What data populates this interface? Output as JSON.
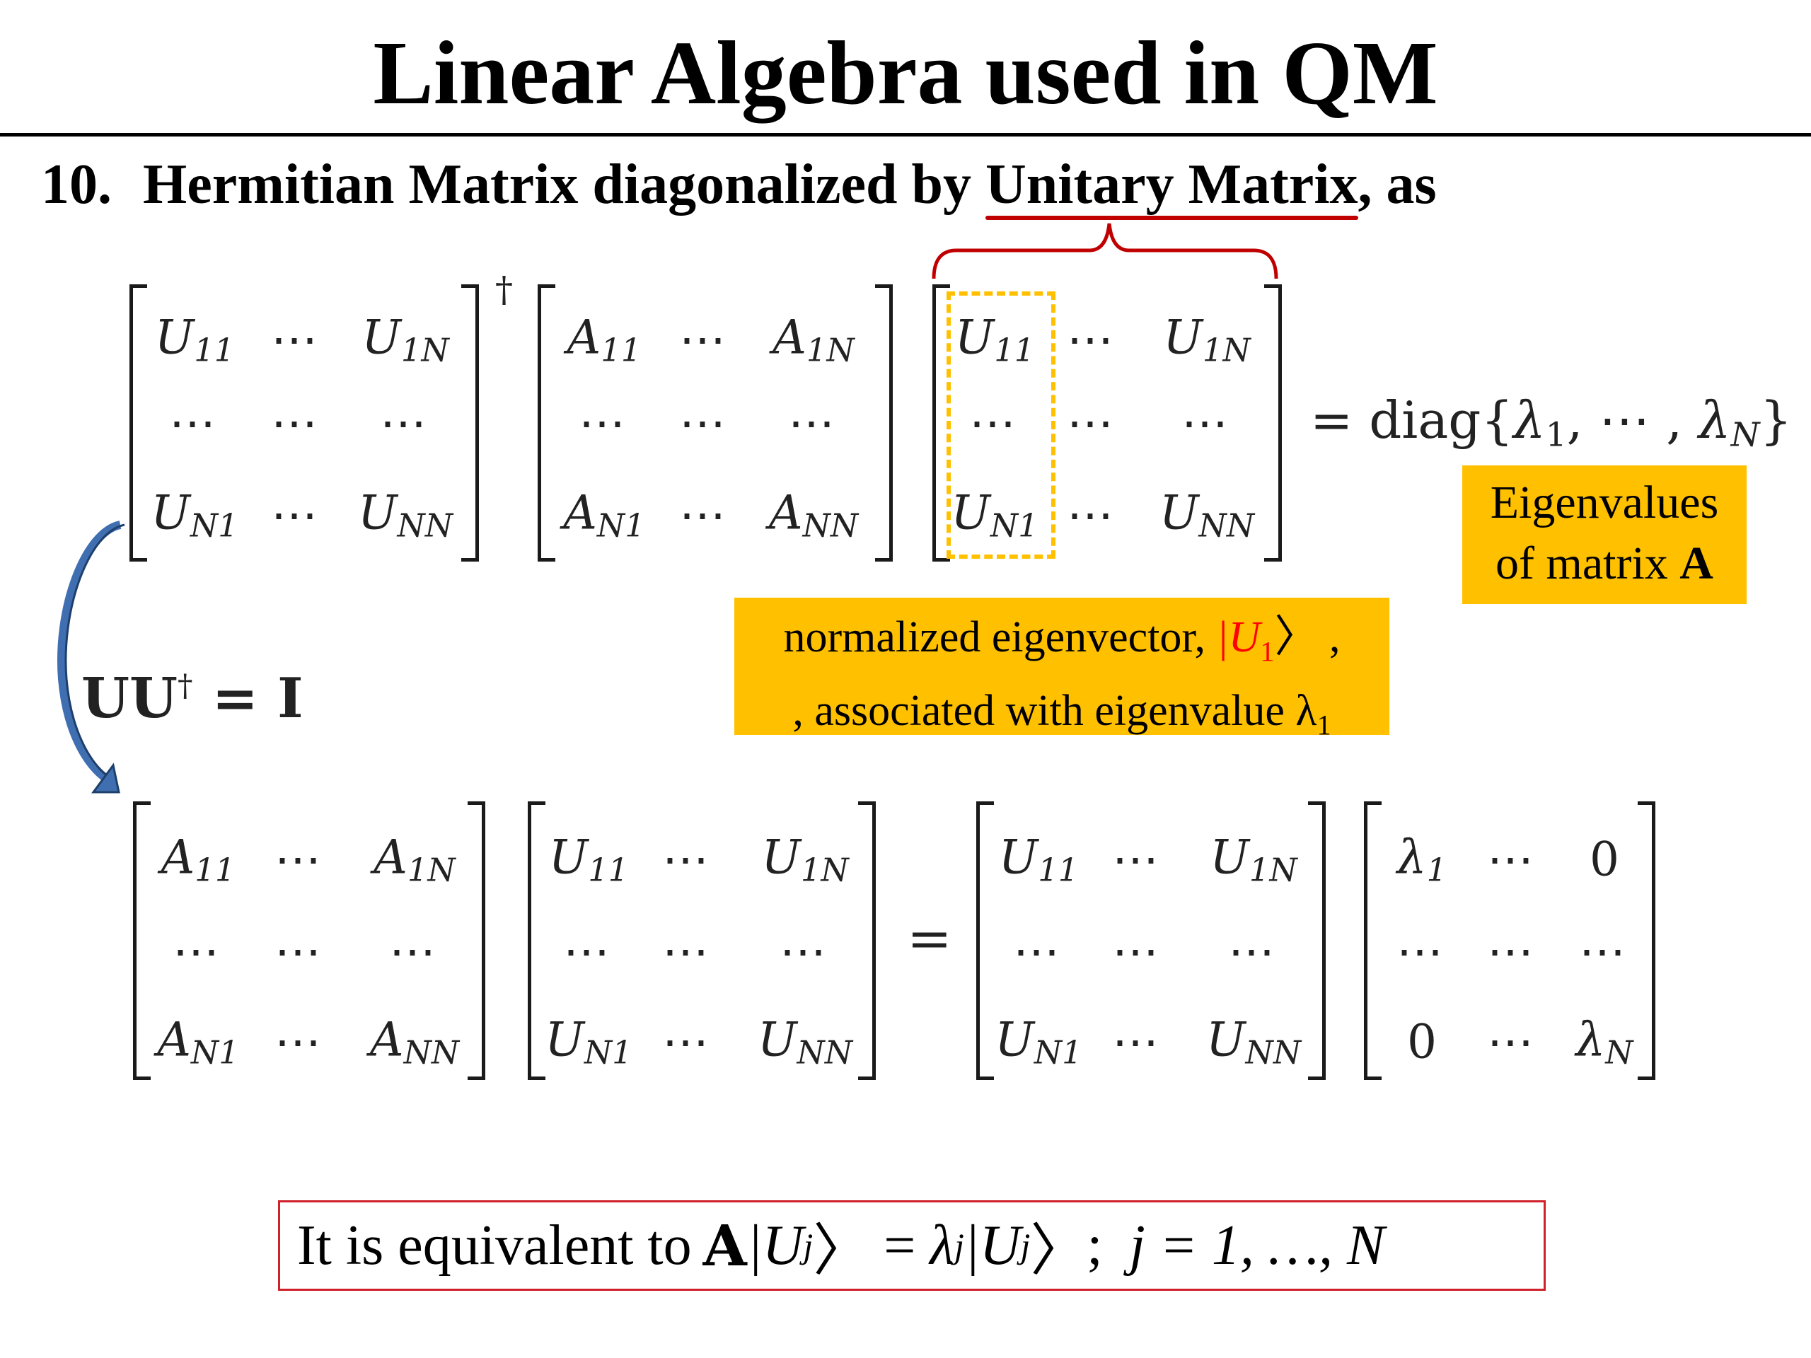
{
  "title": "Linear Algebra used in QM",
  "heading": {
    "number": "10.",
    "text_pre": "Hermitian Matrix diagonalized by ",
    "text_underlined": "Unitary Matrix",
    "text_post": ", as"
  },
  "equation1": {
    "matrix_U_dagger": [
      [
        "U11",
        "⋯",
        "U1N"
      ],
      [
        "⋯",
        "⋯",
        "⋯"
      ],
      [
        "UN1",
        "⋯",
        "UNN"
      ]
    ],
    "dagger": "†",
    "matrix_A": [
      [
        "A11",
        "⋯",
        "A1N"
      ],
      [
        "⋯",
        "⋯",
        "⋯"
      ],
      [
        "AN1",
        "⋯",
        "ANN"
      ]
    ],
    "matrix_U": [
      [
        "U11",
        "⋯",
        "U1N"
      ],
      [
        "⋯",
        "⋯",
        "⋯"
      ],
      [
        "UN1",
        "⋯",
        "UNN"
      ]
    ],
    "rhs_prefix": "= diag{",
    "rhs_l1": "λ",
    "rhs_l1_sub": "1",
    "rhs_mid": ", ⋯ , ",
    "rhs_lN": "λ",
    "rhs_lN_sub": "N",
    "rhs_suffix": "}"
  },
  "eigenvalues_box": {
    "line1": "Eigenvalues",
    "line2_pre": "of matrix ",
    "line2_bold": "A"
  },
  "eigenvector_box": {
    "line1_pre": "normalized eigenvector, ",
    "ket": "|U",
    "ket_sub": "1",
    "ket_close": "〉",
    "line1_post": " ,",
    "line2_pre": ", associated with eigenvalue λ",
    "line2_sub": "1"
  },
  "identity": {
    "text": "UU",
    "sup": "†",
    "rest": " = I"
  },
  "equation2": {
    "matrix_A": [
      [
        "A11",
        "⋯",
        "A1N"
      ],
      [
        "⋯",
        "⋯",
        "⋯"
      ],
      [
        "AN1",
        "⋯",
        "ANN"
      ]
    ],
    "matrix_U_left": [
      [
        "U11",
        "⋯",
        "U1N"
      ],
      [
        "⋯",
        "⋯",
        "⋯"
      ],
      [
        "UN1",
        "⋯",
        "UNN"
      ]
    ],
    "equals": "=",
    "matrix_U_right": [
      [
        "U11",
        "⋯",
        "U1N"
      ],
      [
        "⋯",
        "⋯",
        "⋯"
      ],
      [
        "UN1",
        "⋯",
        "UNN"
      ]
    ],
    "matrix_lambda": [
      [
        "λ1",
        "⋯",
        "0"
      ],
      [
        "⋯",
        "⋯",
        "⋯"
      ],
      [
        "0",
        "⋯",
        "λN"
      ]
    ]
  },
  "conclusion": {
    "pre": "It is equivalent to ",
    "bold": "A",
    "ket1": "|U",
    "ket1_sub": "j",
    "ket1_close": "〉",
    "equals": " = ",
    "lambda": "λ",
    "lambda_sub": "j",
    "ket2": "|U",
    "ket2_sub": "j",
    "ket2_close": "〉",
    "semicolon": " ;",
    "index": "j = 1, …, N"
  },
  "colors": {
    "underline": "#c00000",
    "brace": "#c00000",
    "dashed_box": "#ffc000",
    "orange_box": "#ffc000",
    "arrow": "#3f6fb0",
    "ket_red": "#ff0000",
    "conclusion_border": "#d0202a"
  }
}
